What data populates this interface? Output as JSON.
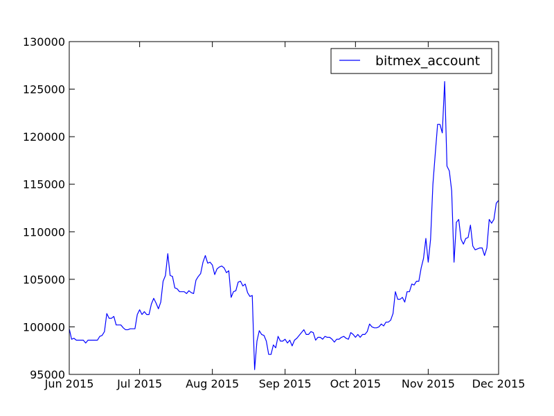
{
  "chart_data": {
    "type": "line",
    "title": "",
    "xlabel": "",
    "ylabel": "",
    "ylim": [
      95000,
      130000
    ],
    "xlim": [
      "2015-06-01",
      "2015-12-01"
    ],
    "yticks": [
      "95000",
      "100000",
      "105000",
      "110000",
      "115000",
      "120000",
      "125000",
      "130000"
    ],
    "xticks": [
      {
        "label": "Jun 2015",
        "date": "2015-06-01"
      },
      {
        "label": "Jul 2015",
        "date": "2015-07-01"
      },
      {
        "label": "Aug 2015",
        "date": "2015-08-01"
      },
      {
        "label": "Sep 2015",
        "date": "2015-09-01"
      },
      {
        "label": "Oct 2015",
        "date": "2015-10-01"
      },
      {
        "label": "Nov 2015",
        "date": "2015-11-01"
      },
      {
        "label": "Dec 2015",
        "date": "2015-12-01"
      }
    ],
    "grid": false,
    "legend_position": "top-right",
    "series": [
      {
        "name": "bitmex_account",
        "color": "#0000ff",
        "points": [
          [
            "2015-06-01",
            99800
          ],
          [
            "2015-06-02",
            98700
          ],
          [
            "2015-06-03",
            98800
          ],
          [
            "2015-06-04",
            98600
          ],
          [
            "2015-06-05",
            98600
          ],
          [
            "2015-06-06",
            98600
          ],
          [
            "2015-06-07",
            98600
          ],
          [
            "2015-06-08",
            98300
          ],
          [
            "2015-06-09",
            98600
          ],
          [
            "2015-06-10",
            98600
          ],
          [
            "2015-06-11",
            98600
          ],
          [
            "2015-06-12",
            98600
          ],
          [
            "2015-06-13",
            98600
          ],
          [
            "2015-06-14",
            99000
          ],
          [
            "2015-06-15",
            99100
          ],
          [
            "2015-06-16",
            99500
          ],
          [
            "2015-06-17",
            101400
          ],
          [
            "2015-06-18",
            100900
          ],
          [
            "2015-06-19",
            100900
          ],
          [
            "2015-06-20",
            101100
          ],
          [
            "2015-06-21",
            100200
          ],
          [
            "2015-06-22",
            100200
          ],
          [
            "2015-06-23",
            100200
          ],
          [
            "2015-06-24",
            99900
          ],
          [
            "2015-06-25",
            99700
          ],
          [
            "2015-06-26",
            99700
          ],
          [
            "2015-06-27",
            99800
          ],
          [
            "2015-06-28",
            99800
          ],
          [
            "2015-06-29",
            99800
          ],
          [
            "2015-06-30",
            101300
          ],
          [
            "2015-07-01",
            101800
          ],
          [
            "2015-07-02",
            101300
          ],
          [
            "2015-07-03",
            101600
          ],
          [
            "2015-07-04",
            101300
          ],
          [
            "2015-07-05",
            101300
          ],
          [
            "2015-07-06",
            102400
          ],
          [
            "2015-07-07",
            103000
          ],
          [
            "2015-07-08",
            102500
          ],
          [
            "2015-07-09",
            101900
          ],
          [
            "2015-07-10",
            102600
          ],
          [
            "2015-07-11",
            104800
          ],
          [
            "2015-07-12",
            105400
          ],
          [
            "2015-07-13",
            107700
          ],
          [
            "2015-07-14",
            105400
          ],
          [
            "2015-07-15",
            105300
          ],
          [
            "2015-07-16",
            104100
          ],
          [
            "2015-07-17",
            104000
          ],
          [
            "2015-07-18",
            103700
          ],
          [
            "2015-07-19",
            103700
          ],
          [
            "2015-07-20",
            103700
          ],
          [
            "2015-07-21",
            103500
          ],
          [
            "2015-07-22",
            103800
          ],
          [
            "2015-07-23",
            103600
          ],
          [
            "2015-07-24",
            103500
          ],
          [
            "2015-07-25",
            104900
          ],
          [
            "2015-07-26",
            105300
          ],
          [
            "2015-07-27",
            105600
          ],
          [
            "2015-07-28",
            106800
          ],
          [
            "2015-07-29",
            107500
          ],
          [
            "2015-07-30",
            106700
          ],
          [
            "2015-07-31",
            106800
          ],
          [
            "2015-08-01",
            106500
          ],
          [
            "2015-08-02",
            105500
          ],
          [
            "2015-08-03",
            106100
          ],
          [
            "2015-08-04",
            106300
          ],
          [
            "2015-08-05",
            106400
          ],
          [
            "2015-08-06",
            106200
          ],
          [
            "2015-08-07",
            105700
          ],
          [
            "2015-08-08",
            105900
          ],
          [
            "2015-08-09",
            103100
          ],
          [
            "2015-08-10",
            103700
          ],
          [
            "2015-08-11",
            103800
          ],
          [
            "2015-08-12",
            104700
          ],
          [
            "2015-08-13",
            104800
          ],
          [
            "2015-08-14",
            104300
          ],
          [
            "2015-08-15",
            104500
          ],
          [
            "2015-08-16",
            103600
          ],
          [
            "2015-08-17",
            103200
          ],
          [
            "2015-08-18",
            103300
          ],
          [
            "2015-08-19",
            95500
          ],
          [
            "2015-08-20",
            98500
          ],
          [
            "2015-08-21",
            99600
          ],
          [
            "2015-08-22",
            99200
          ],
          [
            "2015-08-23",
            99100
          ],
          [
            "2015-08-24",
            98500
          ],
          [
            "2015-08-25",
            97100
          ],
          [
            "2015-08-26",
            97100
          ],
          [
            "2015-08-27",
            98100
          ],
          [
            "2015-08-28",
            97800
          ],
          [
            "2015-08-29",
            99000
          ],
          [
            "2015-08-30",
            98500
          ],
          [
            "2015-08-31",
            98500
          ],
          [
            "2015-09-01",
            98700
          ],
          [
            "2015-09-02",
            98300
          ],
          [
            "2015-09-03",
            98600
          ],
          [
            "2015-09-04",
            98000
          ],
          [
            "2015-09-05",
            98600
          ],
          [
            "2015-09-06",
            98800
          ],
          [
            "2015-09-07",
            99100
          ],
          [
            "2015-09-08",
            99400
          ],
          [
            "2015-09-09",
            99700
          ],
          [
            "2015-09-10",
            99200
          ],
          [
            "2015-09-11",
            99200
          ],
          [
            "2015-09-12",
            99500
          ],
          [
            "2015-09-13",
            99400
          ],
          [
            "2015-09-14",
            98600
          ],
          [
            "2015-09-15",
            98900
          ],
          [
            "2015-09-16",
            98900
          ],
          [
            "2015-09-17",
            98700
          ],
          [
            "2015-09-18",
            99000
          ],
          [
            "2015-09-19",
            98900
          ],
          [
            "2015-09-20",
            98900
          ],
          [
            "2015-09-21",
            98700
          ],
          [
            "2015-09-22",
            98400
          ],
          [
            "2015-09-23",
            98700
          ],
          [
            "2015-09-24",
            98700
          ],
          [
            "2015-09-25",
            98900
          ],
          [
            "2015-09-26",
            99000
          ],
          [
            "2015-09-27",
            98800
          ],
          [
            "2015-09-28",
            98700
          ],
          [
            "2015-09-29",
            99400
          ],
          [
            "2015-09-30",
            99200
          ],
          [
            "2015-10-01",
            98900
          ],
          [
            "2015-10-02",
            99200
          ],
          [
            "2015-10-03",
            98900
          ],
          [
            "2015-10-04",
            99200
          ],
          [
            "2015-10-05",
            99200
          ],
          [
            "2015-10-06",
            99500
          ],
          [
            "2015-10-07",
            100300
          ],
          [
            "2015-10-08",
            100000
          ],
          [
            "2015-10-09",
            99900
          ],
          [
            "2015-10-10",
            99900
          ],
          [
            "2015-10-11",
            100000
          ],
          [
            "2015-10-12",
            100300
          ],
          [
            "2015-10-13",
            100100
          ],
          [
            "2015-10-14",
            100500
          ],
          [
            "2015-10-15",
            100500
          ],
          [
            "2015-10-16",
            100700
          ],
          [
            "2015-10-17",
            101400
          ],
          [
            "2015-10-18",
            103700
          ],
          [
            "2015-10-19",
            102900
          ],
          [
            "2015-10-20",
            102900
          ],
          [
            "2015-10-21",
            103100
          ],
          [
            "2015-10-22",
            102600
          ],
          [
            "2015-10-23",
            103700
          ],
          [
            "2015-10-24",
            103700
          ],
          [
            "2015-10-25",
            104500
          ],
          [
            "2015-10-26",
            104400
          ],
          [
            "2015-10-27",
            104800
          ],
          [
            "2015-10-28",
            104800
          ],
          [
            "2015-10-29",
            106200
          ],
          [
            "2015-10-30",
            107200
          ],
          [
            "2015-10-31",
            109300
          ],
          [
            "2015-11-01",
            106800
          ],
          [
            "2015-11-02",
            109200
          ],
          [
            "2015-11-03",
            115000
          ],
          [
            "2015-11-04",
            118200
          ],
          [
            "2015-11-05",
            121300
          ],
          [
            "2015-11-06",
            121300
          ],
          [
            "2015-11-07",
            120400
          ],
          [
            "2015-11-08",
            125800
          ],
          [
            "2015-11-09",
            116900
          ],
          [
            "2015-11-10",
            116400
          ],
          [
            "2015-11-11",
            114300
          ],
          [
            "2015-11-12",
            106800
          ],
          [
            "2015-11-13",
            111000
          ],
          [
            "2015-11-14",
            111300
          ],
          [
            "2015-11-15",
            109200
          ],
          [
            "2015-11-16",
            108700
          ],
          [
            "2015-11-17",
            109300
          ],
          [
            "2015-11-18",
            109400
          ],
          [
            "2015-11-19",
            110700
          ],
          [
            "2015-11-20",
            108500
          ],
          [
            "2015-11-21",
            108100
          ],
          [
            "2015-11-22",
            108200
          ],
          [
            "2015-11-23",
            108300
          ],
          [
            "2015-11-24",
            108300
          ],
          [
            "2015-11-25",
            107500
          ],
          [
            "2015-11-26",
            108300
          ],
          [
            "2015-11-27",
            111300
          ],
          [
            "2015-11-28",
            110900
          ],
          [
            "2015-11-29",
            111300
          ],
          [
            "2015-11-30",
            113000
          ],
          [
            "2015-12-01",
            113300
          ]
        ]
      }
    ]
  }
}
